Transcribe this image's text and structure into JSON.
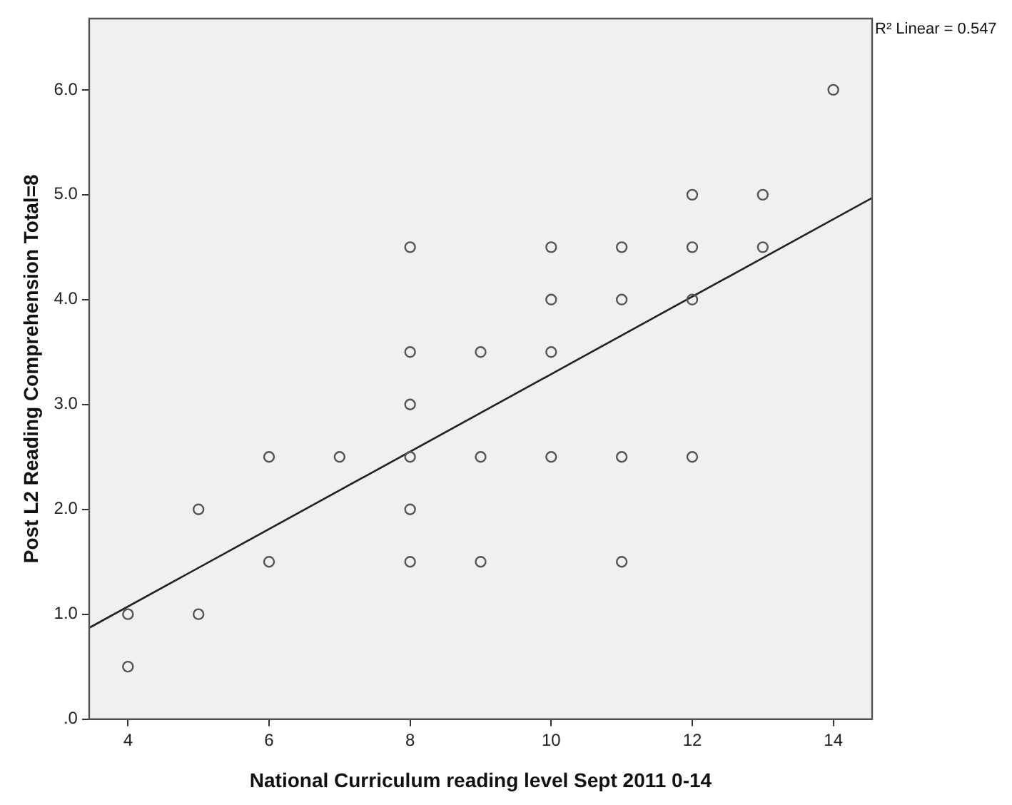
{
  "chart_data": {
    "type": "scatter",
    "xlabel": "National Curriculum reading level Sept 2011 0-14",
    "ylabel": "Post L2 Reading Comprehension Total=8",
    "xlim": [
      3.45,
      14.55
    ],
    "xticks": [
      4,
      6,
      8,
      10,
      12,
      14
    ],
    "ylim": [
      0,
      6.68
    ],
    "yticks": [
      {
        "value": 0,
        "label": ".0"
      },
      {
        "value": 1,
        "label": "1.0"
      },
      {
        "value": 2,
        "label": "2.0"
      },
      {
        "value": 3,
        "label": "3.0"
      },
      {
        "value": 4,
        "label": "4.0"
      },
      {
        "value": 5,
        "label": "5.0"
      },
      {
        "value": 6,
        "label": "6.0"
      }
    ],
    "grid": false,
    "legend": false,
    "marker": "circle",
    "annotations": [
      "R² Linear = 0.547"
    ],
    "series": [
      {
        "color": "#555555",
        "x": [
          4,
          4,
          5,
          5,
          6,
          6,
          7,
          8,
          8,
          8,
          8,
          8,
          8,
          9,
          9,
          9,
          10,
          10,
          10,
          10,
          11,
          11,
          11,
          11,
          12,
          12,
          12,
          12,
          13,
          13,
          14
        ],
        "values": [
          1.0,
          0.5,
          2.0,
          1.0,
          2.5,
          1.5,
          2.5,
          4.5,
          3.5,
          3.0,
          2.5,
          2.0,
          1.5,
          3.5,
          2.5,
          1.5,
          4.5,
          4.0,
          3.5,
          2.5,
          4.5,
          4.0,
          2.5,
          1.5,
          5.0,
          4.5,
          4.0,
          2.5,
          5.0,
          4.5,
          6.0
        ]
      },
      {
        "type": "line",
        "color": "#222222",
        "marker": "none",
        "x": [
          3.45,
          14.55
        ],
        "values": [
          0.87,
          4.97
        ]
      }
    ]
  }
}
